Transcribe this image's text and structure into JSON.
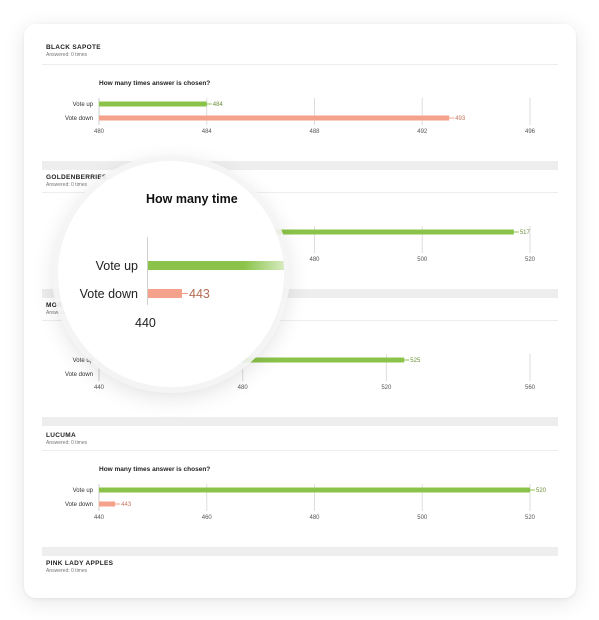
{
  "colors": {
    "up": "#8bc34a",
    "down": "#f4a28c",
    "up_text": "#6b8f3a",
    "down_text": "#c4765d",
    "grid": "#dddddd"
  },
  "questions": [
    {
      "title": "BLACK SAPOTE",
      "answered": "Answered: 0 times"
    },
    {
      "title": "GOLDENBERRIES",
      "answered": "Answered: 0 times"
    },
    {
      "title": "MORIN",
      "answered": "Answered: 0 times"
    },
    {
      "title": "LUCUMA",
      "answered": "Answered: 0 times"
    },
    {
      "title": "PINK LADY APPLES",
      "answered": "Answered: 0 times"
    }
  ],
  "chart_data": [
    {
      "type": "bar",
      "orientation": "horizontal",
      "title": "How many times answer is chosen?",
      "categories": [
        "Vote up",
        "Vote down"
      ],
      "values": [
        484,
        493
      ],
      "value_labels": [
        "484",
        "493"
      ],
      "xlim": [
        480,
        496
      ],
      "ticks": [
        480,
        484,
        488,
        492,
        496
      ],
      "show_title": true,
      "grid": true
    },
    {
      "type": "bar",
      "orientation": "horizontal",
      "title": "",
      "categories": [
        "Vote up",
        "Vote down"
      ],
      "values": [
        517,
        null
      ],
      "value_labels": [
        "517",
        ""
      ],
      "xlim": [
        440,
        520
      ],
      "ticks": [
        480,
        500,
        520
      ],
      "show_title": false,
      "grid": true
    },
    {
      "type": "bar",
      "orientation": "horizontal",
      "title": "",
      "categories": [
        "Vote up",
        "Vote down"
      ],
      "values": [
        525,
        null
      ],
      "value_labels": [
        "525",
        ""
      ],
      "xlim": [
        440,
        560
      ],
      "ticks": [
        440,
        480,
        520,
        560
      ],
      "show_title": false,
      "grid": true
    },
    {
      "type": "bar",
      "orientation": "horizontal",
      "title": "How many times answer is chosen?",
      "categories": [
        "Vote up",
        "Vote down"
      ],
      "values": [
        520,
        443
      ],
      "value_labels": [
        "520",
        "443"
      ],
      "xlim": [
        440,
        520
      ],
      "ticks": [
        440,
        460,
        480,
        500,
        520
      ],
      "show_title": true,
      "grid": true
    }
  ],
  "magnifier": {
    "title": "How many time",
    "up_label": "Vote up",
    "down_label": "Vote down",
    "down_value": "443",
    "tick": "440"
  }
}
